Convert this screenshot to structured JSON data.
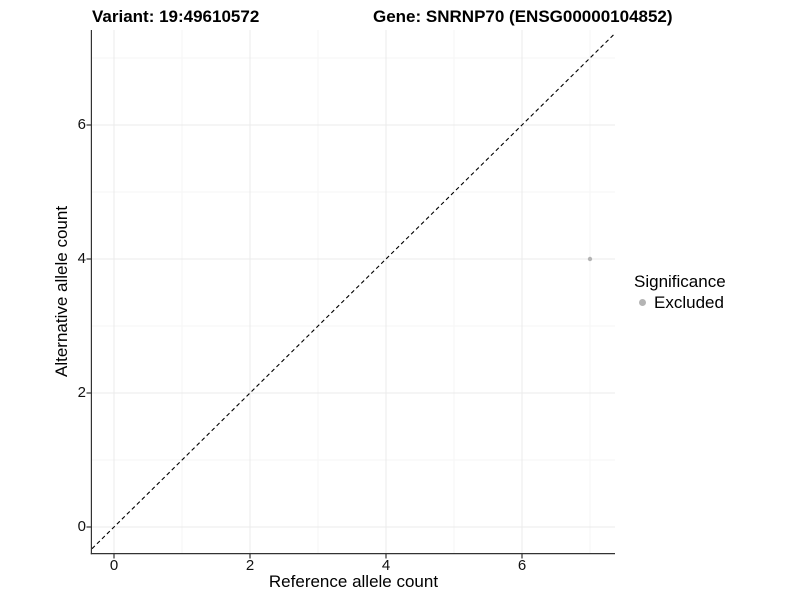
{
  "titles": {
    "variant": "Variant: 19:49610572",
    "gene": "Gene: SNRNP70 (ENSG00000104852)"
  },
  "legend": {
    "title": "Significance",
    "items": [
      {
        "label": "Excluded",
        "color": "#b4b4b4"
      }
    ]
  },
  "chart_data": {
    "type": "scatter",
    "title": "Variant: 19:49610572 — Gene: SNRNP70 (ENSG00000104852)",
    "xlabel": "Reference allele count",
    "ylabel": "Alternative allele count",
    "xlim": [
      -0.35,
      7.4
    ],
    "ylim": [
      -0.4,
      7.45
    ],
    "x_ticks": [
      0,
      2,
      4,
      6
    ],
    "y_ticks": [
      0,
      2,
      4,
      6
    ],
    "x_minor_ticks": [
      1,
      3,
      5,
      7
    ],
    "y_minor_ticks": [
      1,
      3,
      5,
      7
    ],
    "grid": true,
    "legend_position": "right",
    "series": [
      {
        "name": "Excluded",
        "color": "#b4b4b4",
        "points": [
          {
            "x": 7,
            "y": 4
          }
        ]
      }
    ],
    "reference_line": {
      "type": "identity y=x",
      "line_style": "dashed",
      "color": "#000000"
    },
    "colors": {
      "axis": "#333333",
      "grid_major": "#ebebeb",
      "grid_minor": "#f5f5f5",
      "background": "#ffffff"
    }
  }
}
